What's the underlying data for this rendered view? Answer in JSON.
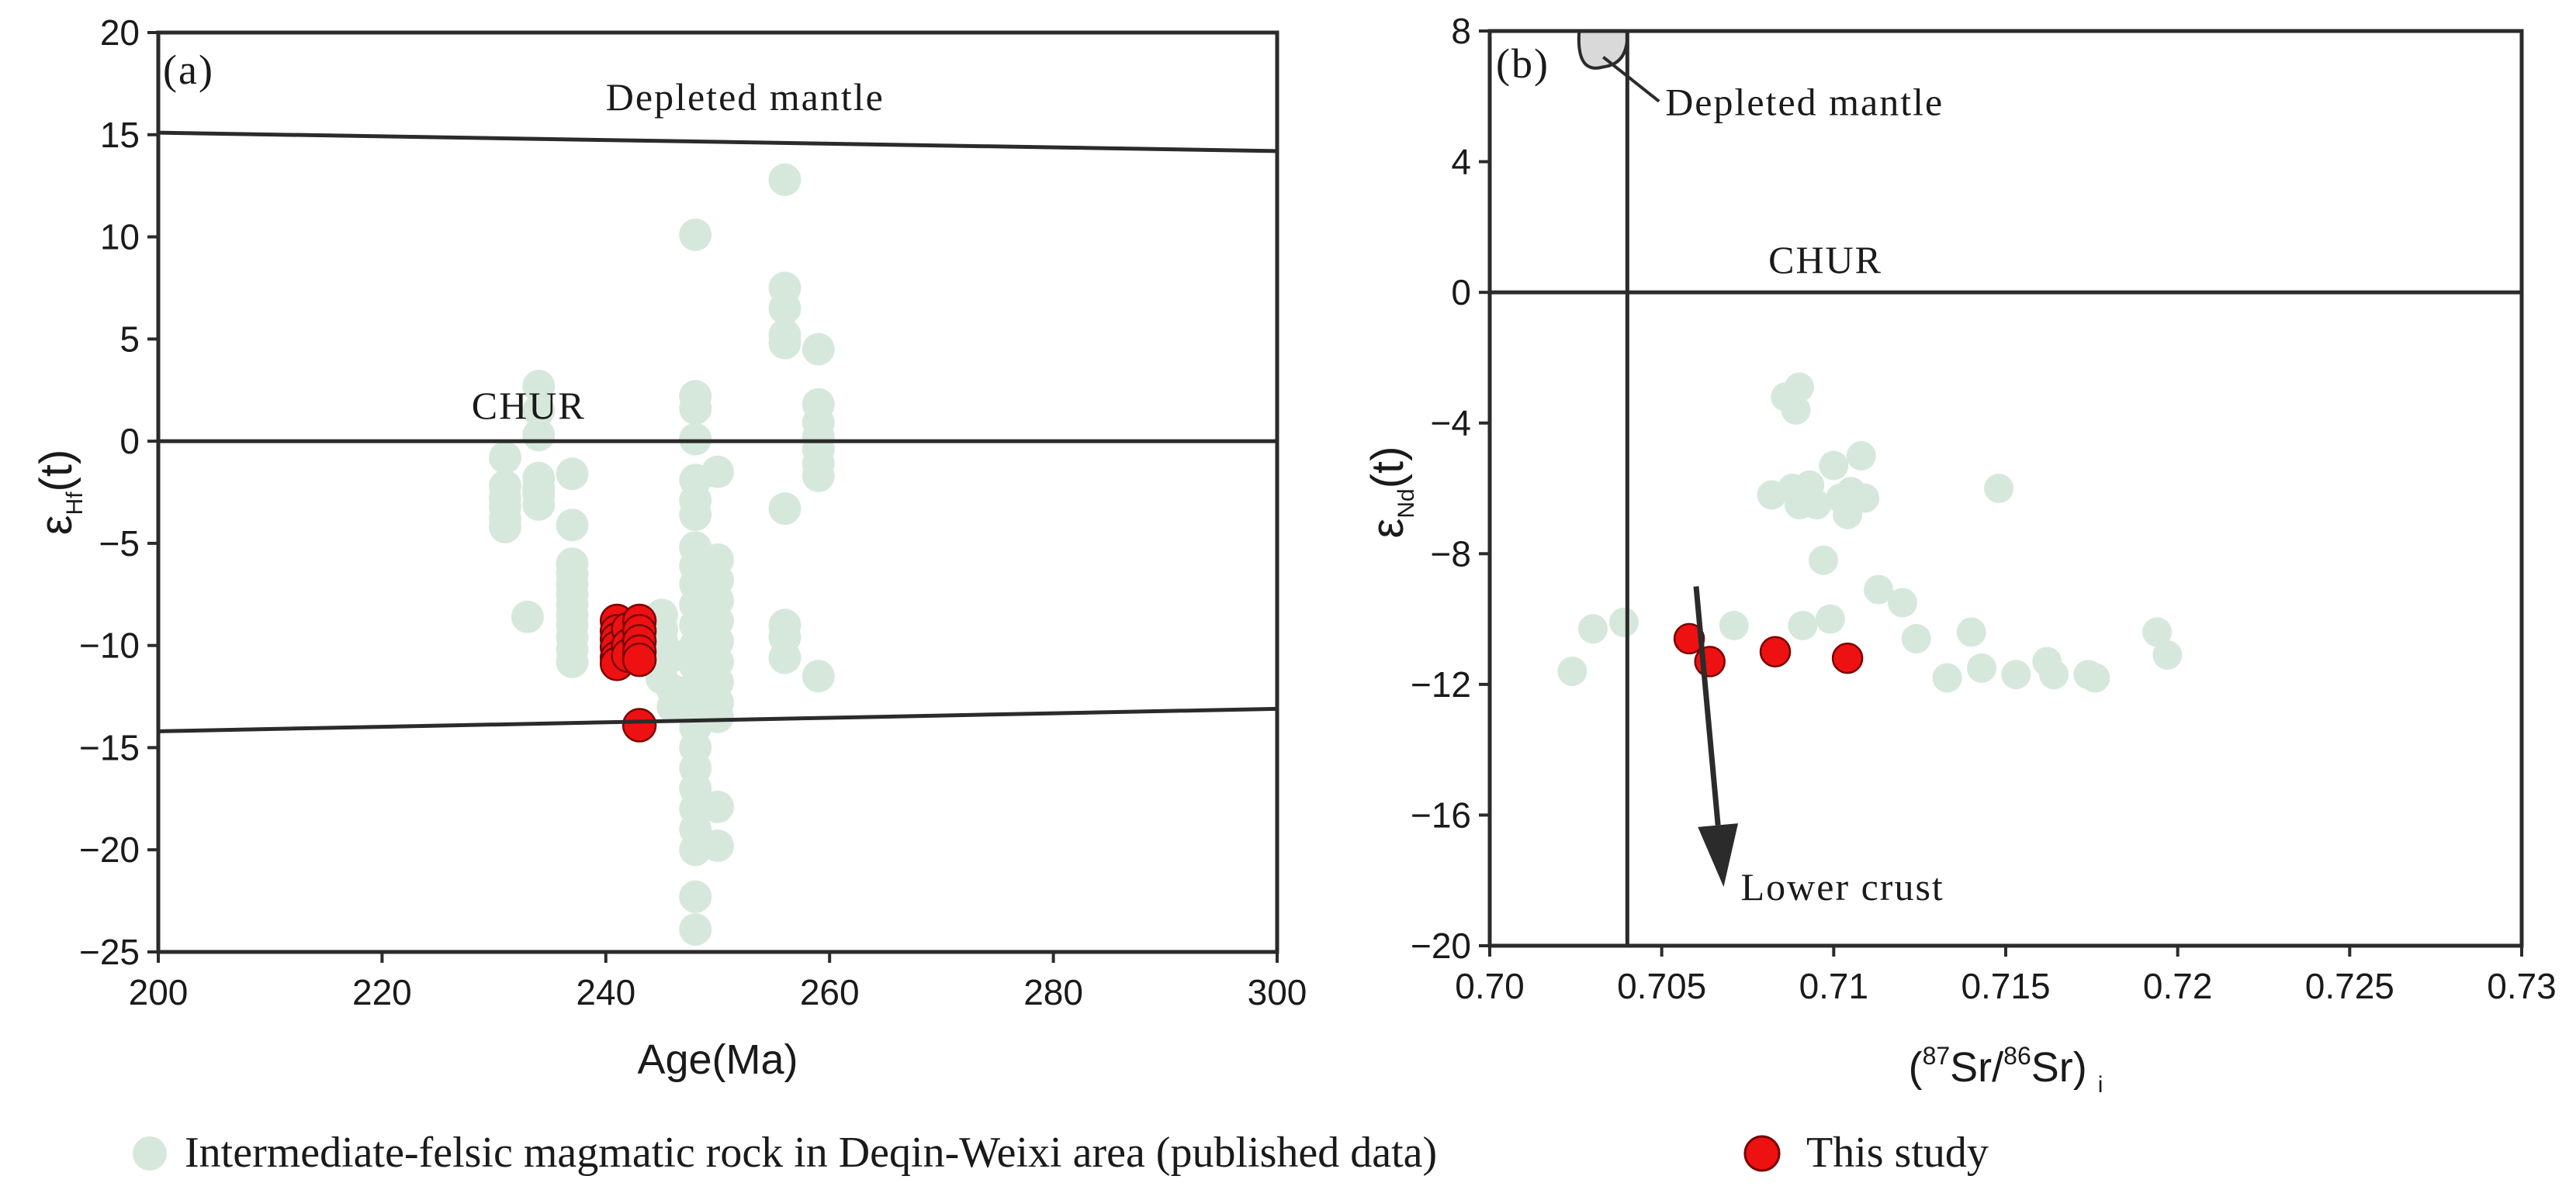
{
  "colors": {
    "published": "#d6e8dc",
    "this_study": "#ee1111",
    "this_study_edge": "#7a0000",
    "axis": "#2b2b2b",
    "dm_field": "#d9d9d9"
  },
  "legend": {
    "published_label": "Intermediate-felsic magmatic rock in Deqin-Weixi area (published data)",
    "this_study_label": "This study"
  },
  "chart_data": [
    {
      "type": "scatter",
      "panel": "(a)",
      "xlabel": "Age(Ma)",
      "ylabel_main": "ε",
      "ylabel_sub": "Hf",
      "ylabel_tail": "(t)",
      "xlim": [
        200,
        300
      ],
      "ylim": [
        -25,
        20
      ],
      "xticks": [
        200,
        220,
        240,
        260,
        280,
        300
      ],
      "yticks": [
        -25,
        -20,
        -15,
        -10,
        -5,
        0,
        5,
        10,
        15,
        20
      ],
      "xtick_labels": [
        "200",
        "220",
        "240",
        "260",
        "280",
        "300"
      ],
      "ytick_labels": [
        "−25",
        "−20",
        "−15",
        "−10",
        "−5",
        "0",
        "5",
        "10",
        "15",
        "20"
      ],
      "reference_lines": [
        {
          "name": "Depleted mantle",
          "points": [
            [
              200,
              15.1
            ],
            [
              300,
              14.2
            ]
          ]
        },
        {
          "name": "CHUR",
          "points": [
            [
              200,
              0
            ],
            [
              300,
              0
            ]
          ]
        },
        {
          "name": "Lower boundary",
          "points": [
            [
              200,
              -14.2
            ],
            [
              300,
              -13.1
            ]
          ]
        }
      ],
      "annotations": [
        {
          "text": "Depleted mantle",
          "x": 240,
          "y": 16.2
        },
        {
          "text": "CHUR",
          "x": 228,
          "y": 1.1
        }
      ],
      "series": [
        {
          "name": "Intermediate-felsic magmatic rock in Deqin-Weixi area (published data)",
          "points": [
            [
              231,
              -0.8
            ],
            [
              231,
              -2.2
            ],
            [
              231,
              -2.8
            ],
            [
              231,
              -3.2
            ],
            [
              231,
              -3.8
            ],
            [
              231,
              -4.2
            ],
            [
              233,
              -8.6
            ],
            [
              234,
              2.7
            ],
            [
              234,
              1.5
            ],
            [
              234,
              0.3
            ],
            [
              234,
              -1.8
            ],
            [
              234,
              -2.3
            ],
            [
              234,
              -2.6
            ],
            [
              234,
              -3.1
            ],
            [
              237,
              -1.6
            ],
            [
              237,
              -4.1
            ],
            [
              237,
              -6.0
            ],
            [
              237,
              -6.5
            ],
            [
              237,
              -7.0
            ],
            [
              237,
              -7.5
            ],
            [
              237,
              -8.0
            ],
            [
              237,
              -8.5
            ],
            [
              237,
              -9.0
            ],
            [
              237,
              -9.6
            ],
            [
              237,
              -10.2
            ],
            [
              237,
              -10.8
            ],
            [
              245,
              -8.5
            ],
            [
              245,
              -9.2
            ],
            [
              245,
              -9.8
            ],
            [
              245,
              -10.4
            ],
            [
              245,
              -11.0
            ],
            [
              245,
              -11.6
            ],
            [
              246,
              -10.5
            ],
            [
              246,
              -12.2
            ],
            [
              246,
              -13.0
            ],
            [
              248,
              10.1
            ],
            [
              248,
              2.2
            ],
            [
              248,
              1.6
            ],
            [
              248,
              0.1
            ],
            [
              248,
              -1.9
            ],
            [
              248,
              -2.9
            ],
            [
              248,
              -3.6
            ],
            [
              248,
              -5.2
            ],
            [
              248,
              -6.1
            ],
            [
              248,
              -7.0
            ],
            [
              248,
              -8.0
            ],
            [
              248,
              -9.0
            ],
            [
              248,
              -10.0
            ],
            [
              248,
              -11.0
            ],
            [
              248,
              -12.0
            ],
            [
              248,
              -13.0
            ],
            [
              248,
              -14.0
            ],
            [
              248,
              -15.0
            ],
            [
              248,
              -16.0
            ],
            [
              248,
              -17.0
            ],
            [
              248,
              -18.0
            ],
            [
              248,
              -19.0
            ],
            [
              248,
              -20.0
            ],
            [
              248,
              -22.3
            ],
            [
              248,
              -23.9
            ],
            [
              250,
              -1.5
            ],
            [
              250,
              -5.8
            ],
            [
              250,
              -6.8
            ],
            [
              250,
              -7.8
            ],
            [
              250,
              -8.8
            ],
            [
              250,
              -9.8
            ],
            [
              250,
              -10.8
            ],
            [
              250,
              -11.8
            ],
            [
              250,
              -12.8
            ],
            [
              250,
              -13.5
            ],
            [
              250,
              -17.9
            ],
            [
              250,
              -19.8
            ],
            [
              256,
              12.8
            ],
            [
              256,
              7.5
            ],
            [
              256,
              6.5
            ],
            [
              256,
              5.2
            ],
            [
              256,
              4.8
            ],
            [
              256,
              -3.3
            ],
            [
              256,
              -9.0
            ],
            [
              256,
              -9.6
            ],
            [
              256,
              -10.6
            ],
            [
              259,
              4.5
            ],
            [
              259,
              1.8
            ],
            [
              259,
              0.9
            ],
            [
              259,
              0.2
            ],
            [
              259,
              -0.4
            ],
            [
              259,
              -1.1
            ],
            [
              259,
              -1.7
            ],
            [
              259,
              -11.5
            ]
          ]
        },
        {
          "name": "This study",
          "points": [
            [
              241,
              -8.8
            ],
            [
              241,
              -9.3
            ],
            [
              241,
              -9.7
            ],
            [
              241,
              -10.1
            ],
            [
              241,
              -10.6
            ],
            [
              241,
              -10.9
            ],
            [
              242,
              -9.2
            ],
            [
              242,
              -10.0
            ],
            [
              242,
              -10.5
            ],
            [
              243,
              -8.8
            ],
            [
              243,
              -9.3
            ],
            [
              243,
              -9.8
            ],
            [
              243,
              -10.3
            ],
            [
              243,
              -10.7
            ],
            [
              243,
              -13.9
            ]
          ]
        }
      ]
    },
    {
      "type": "scatter",
      "panel": "(b)",
      "xlabel": "(87Sr/86Sr) i",
      "xlabel_parts": {
        "open": "(",
        "sup1": "87",
        "sr1": "Sr/",
        "sup2": "86",
        "sr2": "Sr)",
        "sub": "i"
      },
      "ylabel_main": "ε",
      "ylabel_sub": "Nd",
      "ylabel_tail": "(t)",
      "xlim": [
        0.7,
        0.73
      ],
      "ylim": [
        -20,
        8
      ],
      "xticks": [
        0.7,
        0.705,
        0.71,
        0.715,
        0.72,
        0.725,
        0.73
      ],
      "yticks": [
        -20,
        -16,
        -12,
        -8,
        -4,
        0,
        4,
        8
      ],
      "xtick_labels": [
        "0.70",
        "0.705",
        "0.71",
        "0.715",
        "0.72",
        "0.725",
        "0.73"
      ],
      "ytick_labels": [
        "−20",
        "−16",
        "−12",
        "−8",
        "−4",
        "0",
        "4",
        "8"
      ],
      "reference_lines": [
        {
          "name": "CHUR",
          "points": [
            [
              0.7,
              0
            ],
            [
              0.73,
              0
            ]
          ]
        },
        {
          "name": "Sr reference",
          "points": [
            [
              0.704,
              -20
            ],
            [
              0.704,
              8
            ]
          ]
        }
      ],
      "annotations": [
        {
          "text": "Depleted mantle",
          "x": 0.7042,
          "y": 5.8
        },
        {
          "text": "CHUR",
          "x": 0.7081,
          "y": 0.6
        },
        {
          "text": "Lower crust",
          "x": 0.7073,
          "y": -18.6
        }
      ],
      "arrow": {
        "label": "Lower crust",
        "from": [
          0.706,
          -9.0
        ],
        "to": [
          0.7068,
          -18.2
        ]
      },
      "depleted_mantle_field": {
        "x_range": [
          0.7026,
          0.704
        ],
        "y_range": [
          6.9,
          8
        ]
      },
      "series": [
        {
          "name": "Intermediate-felsic magmatic rock in Deqin-Weixi area (published data)",
          "points": [
            [
              0.7024,
              -11.6
            ],
            [
              0.703,
              -10.3
            ],
            [
              0.7039,
              -10.1
            ],
            [
              0.7071,
              -10.2
            ],
            [
              0.7082,
              -6.2
            ],
            [
              0.7086,
              -3.2
            ],
            [
              0.7088,
              -6.0
            ],
            [
              0.7089,
              -3.6
            ],
            [
              0.709,
              -2.9
            ],
            [
              0.709,
              -6.5
            ],
            [
              0.7091,
              -10.2
            ],
            [
              0.7093,
              -5.9
            ],
            [
              0.7095,
              -6.5
            ],
            [
              0.7097,
              -8.2
            ],
            [
              0.7099,
              -10.0
            ],
            [
              0.71,
              -5.3
            ],
            [
              0.7102,
              -6.3
            ],
            [
              0.7104,
              -6.8
            ],
            [
              0.7105,
              -6.1
            ],
            [
              0.7108,
              -5.0
            ],
            [
              0.7109,
              -6.3
            ],
            [
              0.7113,
              -9.1
            ],
            [
              0.712,
              -9.5
            ],
            [
              0.7124,
              -10.6
            ],
            [
              0.7133,
              -11.8
            ],
            [
              0.714,
              -10.4
            ],
            [
              0.7143,
              -11.5
            ],
            [
              0.7148,
              -6.0
            ],
            [
              0.7153,
              -11.7
            ],
            [
              0.7162,
              -11.3
            ],
            [
              0.7164,
              -11.7
            ],
            [
              0.7174,
              -11.7
            ],
            [
              0.7176,
              -11.8
            ],
            [
              0.7194,
              -10.4
            ],
            [
              0.7197,
              -11.1
            ]
          ]
        },
        {
          "name": "This study",
          "points": [
            [
              0.7058,
              -10.6
            ],
            [
              0.7064,
              -11.3
            ],
            [
              0.7083,
              -11.0
            ],
            [
              0.7104,
              -11.2
            ]
          ]
        }
      ]
    }
  ]
}
